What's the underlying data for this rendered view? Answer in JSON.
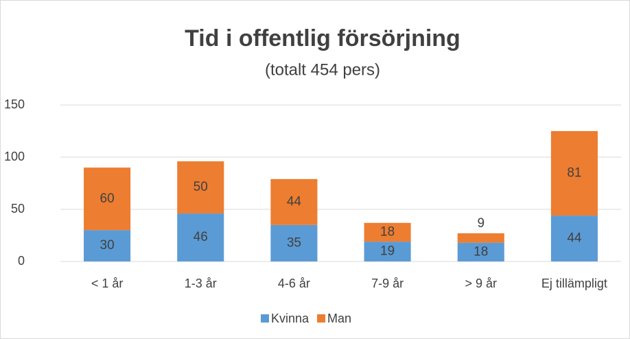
{
  "chart_data": {
    "type": "stacked_bar",
    "title": "Tid i offentlig försörjning",
    "subtitle": "(totalt 454 pers)",
    "categories": [
      "< 1 år",
      "1-3 år",
      "4-6 år",
      "7-9 år",
      "> 9 år",
      "Ej tillämpligt"
    ],
    "series": [
      {
        "name": "Kvinna",
        "color": "#5b9bd5",
        "values": [
          30,
          46,
          35,
          19,
          18,
          44
        ]
      },
      {
        "name": "Man",
        "color": "#ed7d31",
        "values": [
          60,
          50,
          44,
          18,
          9,
          81
        ]
      }
    ],
    "ylim": [
      0,
      150
    ],
    "yticks": [
      0,
      50,
      100,
      150
    ],
    "grid": true,
    "legend": "bottom"
  }
}
